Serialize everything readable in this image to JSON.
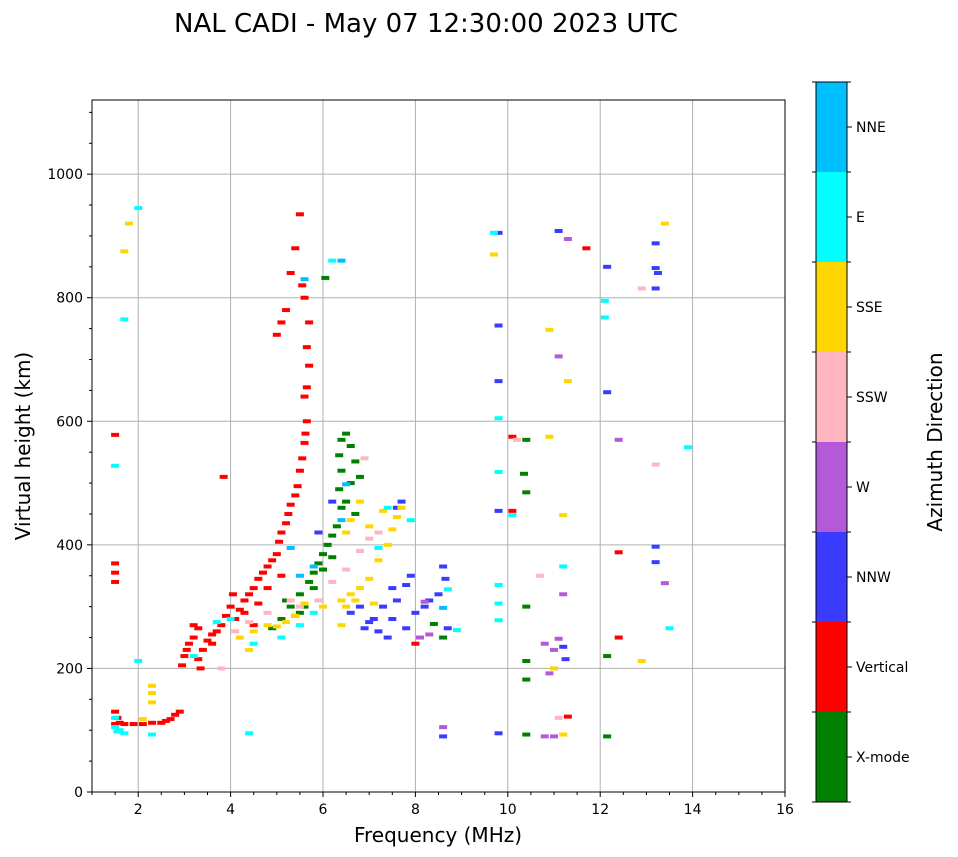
{
  "chart_data": {
    "type": "scatter",
    "title": "NAL CADI - May 07 12:30:00 2023 UTC",
    "xlabel": "Frequency (MHz)",
    "ylabel": "Virtual height (km)",
    "xlim": [
      1,
      16
    ],
    "ylim": [
      0,
      1120
    ],
    "xticks": [
      2,
      4,
      6,
      8,
      10,
      12,
      14,
      16
    ],
    "xtick_labels": [
      "2",
      "4",
      "6",
      "8",
      "10",
      "12",
      "14",
      "16"
    ],
    "yticks": [
      0,
      200,
      400,
      600,
      800,
      1000
    ],
    "ytick_labels": [
      "0",
      "200",
      "400",
      "600",
      "800",
      "1000"
    ],
    "grid": true,
    "colorbar": {
      "label": "Azimuth Direction",
      "categories": [
        {
          "name": "X-mode",
          "color": "#008000"
        },
        {
          "name": "Vertical",
          "color": "#ff0000"
        },
        {
          "name": "NNW",
          "color": "#3b3bff"
        },
        {
          "name": "W",
          "color": "#b45ad8"
        },
        {
          "name": "SSW",
          "color": "#ffb6c1"
        },
        {
          "name": "SSE",
          "color": "#ffd700"
        },
        {
          "name": "E",
          "color": "#00ffff"
        },
        {
          "name": "NNE",
          "color": "#00bfff"
        }
      ]
    },
    "series": [
      {
        "name": "Vertical",
        "points": [
          [
            1.5,
            130
          ],
          [
            1.55,
            120
          ],
          [
            1.5,
            110
          ],
          [
            1.6,
            112
          ],
          [
            1.7,
            110
          ],
          [
            1.9,
            110
          ],
          [
            2.1,
            110
          ],
          [
            2.3,
            112
          ],
          [
            2.5,
            112
          ],
          [
            2.6,
            115
          ],
          [
            2.7,
            118
          ],
          [
            2.8,
            125
          ],
          [
            2.9,
            130
          ],
          [
            2.95,
            205
          ],
          [
            3.0,
            220
          ],
          [
            3.05,
            230
          ],
          [
            3.1,
            240
          ],
          [
            3.2,
            250
          ],
          [
            3.3,
            215
          ],
          [
            3.35,
            200
          ],
          [
            3.4,
            230
          ],
          [
            3.5,
            245
          ],
          [
            3.6,
            255
          ],
          [
            3.7,
            260
          ],
          [
            3.8,
            270
          ],
          [
            3.9,
            285
          ],
          [
            4.0,
            300
          ],
          [
            4.05,
            320
          ],
          [
            4.1,
            280
          ],
          [
            4.2,
            295
          ],
          [
            4.3,
            310
          ],
          [
            4.4,
            320
          ],
          [
            4.5,
            330
          ],
          [
            4.6,
            345
          ],
          [
            4.7,
            355
          ],
          [
            4.8,
            365
          ],
          [
            4.9,
            375
          ],
          [
            5.0,
            385
          ],
          [
            5.05,
            405
          ],
          [
            5.1,
            420
          ],
          [
            5.2,
            435
          ],
          [
            5.25,
            450
          ],
          [
            5.3,
            465
          ],
          [
            5.4,
            480
          ],
          [
            5.45,
            495
          ],
          [
            5.5,
            520
          ],
          [
            5.55,
            540
          ],
          [
            5.6,
            565
          ],
          [
            5.62,
            580
          ],
          [
            5.65,
            600
          ],
          [
            5.6,
            640
          ],
          [
            5.65,
            655
          ],
          [
            5.7,
            690
          ],
          [
            5.65,
            720
          ],
          [
            5.7,
            760
          ],
          [
            5.6,
            800
          ],
          [
            5.55,
            820
          ],
          [
            5.5,
            935
          ],
          [
            5.4,
            880
          ],
          [
            5.3,
            840
          ],
          [
            5.2,
            780
          ],
          [
            5.1,
            760
          ],
          [
            5.0,
            740
          ],
          [
            1.5,
            370
          ],
          [
            1.5,
            355
          ],
          [
            1.5,
            340
          ],
          [
            1.5,
            578
          ],
          [
            3.85,
            510
          ],
          [
            10.1,
            575
          ],
          [
            10.1,
            455
          ],
          [
            11.7,
            880
          ],
          [
            12.4,
            388
          ],
          [
            12.4,
            250
          ],
          [
            11.3,
            122
          ],
          [
            4.6,
            305
          ],
          [
            4.3,
            290
          ],
          [
            4.8,
            330
          ],
          [
            5.1,
            350
          ],
          [
            4.5,
            270
          ],
          [
            3.2,
            270
          ],
          [
            3.3,
            265
          ],
          [
            3.6,
            240
          ],
          [
            8.0,
            240
          ]
        ]
      },
      {
        "name": "X-mode",
        "points": [
          [
            4.9,
            265
          ],
          [
            5.1,
            280
          ],
          [
            5.3,
            300
          ],
          [
            5.5,
            320
          ],
          [
            5.7,
            340
          ],
          [
            5.8,
            355
          ],
          [
            5.9,
            370
          ],
          [
            6.0,
            385
          ],
          [
            6.1,
            400
          ],
          [
            6.2,
            415
          ],
          [
            6.3,
            430
          ],
          [
            6.4,
            460
          ],
          [
            6.35,
            490
          ],
          [
            6.4,
            520
          ],
          [
            6.35,
            545
          ],
          [
            6.4,
            570
          ],
          [
            6.5,
            580
          ],
          [
            6.6,
            560
          ],
          [
            6.7,
            535
          ],
          [
            6.8,
            510
          ],
          [
            6.6,
            500
          ],
          [
            6.5,
            470
          ],
          [
            6.7,
            450
          ],
          [
            6.2,
            380
          ],
          [
            6.0,
            360
          ],
          [
            5.8,
            330
          ],
          [
            5.6,
            300
          ],
          [
            5.4,
            285
          ],
          [
            6.05,
            832
          ],
          [
            8.4,
            272
          ],
          [
            8.6,
            250
          ],
          [
            10.4,
            570
          ],
          [
            10.35,
            515
          ],
          [
            10.4,
            485
          ],
          [
            10.4,
            300
          ],
          [
            10.4,
            212
          ],
          [
            10.4,
            182
          ],
          [
            10.4,
            93
          ],
          [
            12.15,
            220
          ],
          [
            12.15,
            90
          ],
          [
            5.2,
            310
          ],
          [
            5.5,
            290
          ]
        ]
      },
      {
        "name": "NNW",
        "points": [
          [
            6.6,
            290
          ],
          [
            6.8,
            300
          ],
          [
            7.0,
            275
          ],
          [
            7.2,
            260
          ],
          [
            7.4,
            250
          ],
          [
            7.3,
            300
          ],
          [
            7.6,
            310
          ],
          [
            7.5,
            330
          ],
          [
            7.8,
            335
          ],
          [
            7.9,
            350
          ],
          [
            7.7,
            470
          ],
          [
            7.6,
            460
          ],
          [
            7.1,
            280
          ],
          [
            6.9,
            265
          ],
          [
            7.5,
            280
          ],
          [
            7.8,
            265
          ],
          [
            8.0,
            290
          ],
          [
            8.2,
            300
          ],
          [
            8.3,
            310
          ],
          [
            8.6,
            365
          ],
          [
            8.65,
            345
          ],
          [
            8.5,
            320
          ],
          [
            8.7,
            265
          ],
          [
            8.6,
            90
          ],
          [
            9.8,
            905
          ],
          [
            9.8,
            755
          ],
          [
            9.8,
            665
          ],
          [
            9.8,
            455
          ],
          [
            9.8,
            95
          ],
          [
            11.1,
            908
          ],
          [
            11.2,
            235
          ],
          [
            11.25,
            215
          ],
          [
            12.15,
            850
          ],
          [
            12.15,
            647
          ],
          [
            13.2,
            888
          ],
          [
            13.2,
            848
          ],
          [
            13.25,
            840
          ],
          [
            13.2,
            815
          ],
          [
            13.2,
            397
          ],
          [
            13.2,
            372
          ],
          [
            5.9,
            420
          ],
          [
            6.2,
            470
          ]
        ]
      },
      {
        "name": "W",
        "points": [
          [
            8.1,
            250
          ],
          [
            8.3,
            255
          ],
          [
            8.2,
            308
          ],
          [
            8.6,
            105
          ],
          [
            10.8,
            240
          ],
          [
            11.0,
            230
          ],
          [
            11.1,
            248
          ],
          [
            11.2,
            320
          ],
          [
            10.9,
            192
          ],
          [
            10.8,
            90
          ],
          [
            11.3,
            895
          ],
          [
            11.1,
            705
          ],
          [
            12.4,
            570
          ],
          [
            13.4,
            338
          ],
          [
            11.0,
            90
          ]
        ]
      },
      {
        "name": "SSW",
        "points": [
          [
            4.1,
            260
          ],
          [
            4.4,
            275
          ],
          [
            4.8,
            290
          ],
          [
            5.3,
            310
          ],
          [
            5.5,
            300
          ],
          [
            5.9,
            310
          ],
          [
            6.2,
            340
          ],
          [
            6.5,
            360
          ],
          [
            6.8,
            390
          ],
          [
            7.0,
            410
          ],
          [
            7.2,
            420
          ],
          [
            6.9,
            540
          ],
          [
            10.7,
            350
          ],
          [
            12.9,
            815
          ],
          [
            13.2,
            530
          ],
          [
            11.1,
            120
          ],
          [
            10.2,
            570
          ],
          [
            3.8,
            200
          ]
        ]
      },
      {
        "name": "SSE",
        "points": [
          [
            4.2,
            250
          ],
          [
            4.5,
            260
          ],
          [
            4.8,
            270
          ],
          [
            5.0,
            268
          ],
          [
            5.2,
            275
          ],
          [
            5.4,
            285
          ],
          [
            5.6,
            305
          ],
          [
            6.0,
            300
          ],
          [
            6.4,
            310
          ],
          [
            6.6,
            320
          ],
          [
            6.8,
            330
          ],
          [
            7.0,
            345
          ],
          [
            7.2,
            375
          ],
          [
            7.4,
            400
          ],
          [
            7.5,
            425
          ],
          [
            7.6,
            445
          ],
          [
            7.7,
            460
          ],
          [
            7.3,
            455
          ],
          [
            7.0,
            430
          ],
          [
            6.8,
            470
          ],
          [
            6.6,
            440
          ],
          [
            6.5,
            420
          ],
          [
            6.4,
            270
          ],
          [
            6.5,
            300
          ],
          [
            6.7,
            310
          ],
          [
            7.1,
            305
          ],
          [
            2.3,
            145
          ],
          [
            2.3,
            160
          ],
          [
            2.3,
            172
          ],
          [
            2.1,
            118
          ],
          [
            1.8,
            920
          ],
          [
            1.7,
            875
          ],
          [
            9.7,
            870
          ],
          [
            10.9,
            748
          ],
          [
            10.9,
            575
          ],
          [
            11.2,
            448
          ],
          [
            11.3,
            665
          ],
          [
            11.0,
            200
          ],
          [
            11.2,
            93
          ],
          [
            12.9,
            212
          ],
          [
            13.4,
            920
          ],
          [
            4.4,
            230
          ]
        ]
      },
      {
        "name": "E",
        "points": [
          [
            1.5,
            105
          ],
          [
            1.6,
            100
          ],
          [
            1.7,
            95
          ],
          [
            1.5,
            120
          ],
          [
            1.55,
            98
          ],
          [
            1.7,
            765
          ],
          [
            1.5,
            528
          ],
          [
            2.0,
            945
          ],
          [
            2.3,
            93
          ],
          [
            2.0,
            212
          ],
          [
            3.2,
            220
          ],
          [
            3.7,
            275
          ],
          [
            4.0,
            280
          ],
          [
            4.5,
            240
          ],
          [
            4.4,
            95
          ],
          [
            5.1,
            250
          ],
          [
            5.5,
            270
          ],
          [
            5.8,
            290
          ],
          [
            6.2,
            860
          ],
          [
            7.4,
            460
          ],
          [
            7.9,
            440
          ],
          [
            7.2,
            395
          ],
          [
            8.7,
            328
          ],
          [
            8.9,
            262
          ],
          [
            9.7,
            905
          ],
          [
            9.8,
            605
          ],
          [
            9.8,
            518
          ],
          [
            9.8,
            335
          ],
          [
            9.8,
            305
          ],
          [
            9.8,
            278
          ],
          [
            10.1,
            448
          ],
          [
            11.2,
            365
          ],
          [
            12.1,
            795
          ],
          [
            12.1,
            768
          ],
          [
            13.5,
            265
          ],
          [
            13.9,
            558
          ]
        ]
      },
      {
        "name": "NNE",
        "points": [
          [
            6.5,
            498
          ],
          [
            6.4,
            440
          ],
          [
            5.3,
            395
          ],
          [
            5.8,
            365
          ],
          [
            5.5,
            350
          ],
          [
            6.4,
            860
          ],
          [
            5.6,
            830
          ],
          [
            8.6,
            298
          ]
        ]
      }
    ]
  }
}
